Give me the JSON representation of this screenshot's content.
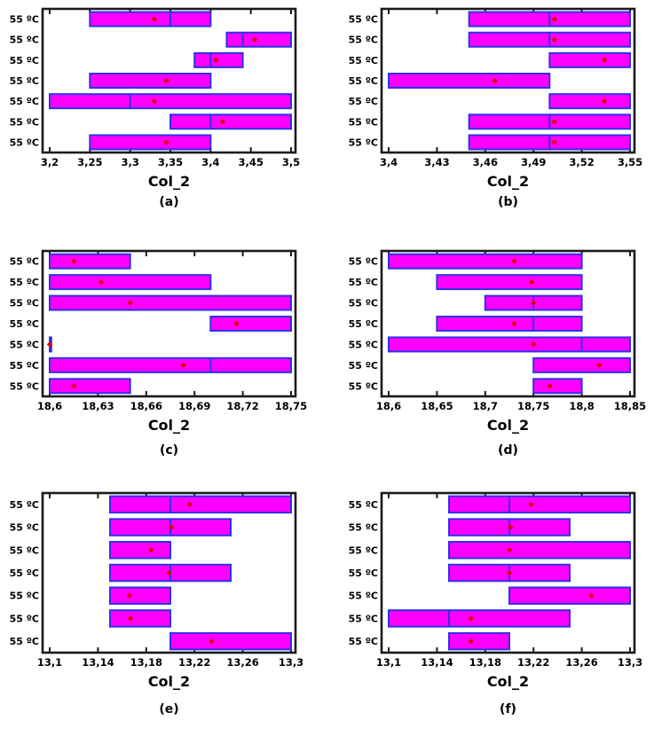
{
  "page": {
    "background": "#ffffff"
  },
  "colors": {
    "box_fill": "#ff00ff",
    "box_border": "#3030e8",
    "median_line": "#3030e8",
    "mean_marker": "#e00000",
    "frame": "#1b1b1b",
    "text": "#000000"
  },
  "x_axis_title": "Col_2",
  "y_axis_label": "55 ºC",
  "chart_data": [
    {
      "type": "boxplot-horizontal",
      "caption": "(a)",
      "xlabel": "Col_2",
      "xlim": [
        3.2,
        3.5
      ],
      "x_tick_values": [
        3.2,
        3.25,
        3.3,
        3.35,
        3.4,
        3.45,
        3.5
      ],
      "x_tick_labels": [
        "3,2",
        "3,25",
        "3,3",
        "3,35",
        "3,4",
        "3,45",
        "3,5"
      ],
      "y_labels": [
        "55 ºC",
        "55 ºC",
        "55 ºC",
        "55 ºC",
        "55 ºC",
        "55 ºC",
        "55 ºC"
      ],
      "boxes": [
        {
          "min": 3.25,
          "max": 3.4,
          "median": 3.35,
          "mean": 3.33
        },
        {
          "min": 3.42,
          "max": 3.5,
          "median": 3.44,
          "mean": 3.455
        },
        {
          "min": 3.38,
          "max": 3.44,
          "median": 3.4,
          "mean": 3.407
        },
        {
          "min": 3.25,
          "max": 3.4,
          "median": null,
          "mean": 3.345
        },
        {
          "min": 3.2,
          "max": 3.5,
          "median": 3.3,
          "mean": 3.33
        },
        {
          "min": 3.35,
          "max": 3.5,
          "median": 3.4,
          "mean": 3.415
        },
        {
          "min": 3.25,
          "max": 3.4,
          "median": null,
          "mean": 3.345
        }
      ]
    },
    {
      "type": "boxplot-horizontal",
      "caption": "(b)",
      "xlabel": "Col_2",
      "xlim": [
        3.4,
        3.55
      ],
      "x_tick_values": [
        3.4,
        3.43,
        3.46,
        3.49,
        3.52,
        3.55
      ],
      "x_tick_labels": [
        "3,4",
        "3,43",
        "3,46",
        "3,49",
        "3,52",
        "3,55"
      ],
      "y_labels": [
        "55 ºC",
        "55 ºC",
        "55 ºC",
        "55 ºC",
        "55 ºC",
        "55 ºC",
        "55 ºC"
      ],
      "boxes": [
        {
          "min": 3.45,
          "max": 3.55,
          "median": 3.5,
          "mean": 3.503
        },
        {
          "min": 3.45,
          "max": 3.55,
          "median": 3.5,
          "mean": 3.503
        },
        {
          "min": 3.5,
          "max": 3.55,
          "median": null,
          "mean": 3.534
        },
        {
          "min": 3.4,
          "max": 3.5,
          "median": null,
          "mean": 3.466
        },
        {
          "min": 3.5,
          "max": 3.55,
          "median": null,
          "mean": 3.534
        },
        {
          "min": 3.45,
          "max": 3.55,
          "median": 3.5,
          "mean": 3.503
        },
        {
          "min": 3.45,
          "max": 3.55,
          "median": 3.5,
          "mean": 3.503
        }
      ]
    },
    {
      "type": "boxplot-horizontal",
      "caption": "(c)",
      "xlabel": "Col_2",
      "xlim": [
        18.6,
        18.75
      ],
      "x_tick_values": [
        18.6,
        18.63,
        18.66,
        18.69,
        18.72,
        18.75
      ],
      "x_tick_labels": [
        "18,6",
        "18,63",
        "18,66",
        "18,69",
        "18,72",
        "18,75"
      ],
      "y_labels": [
        "55 ºC",
        "55 ºC",
        "55 ºC",
        "55 ºC",
        "55 ºC",
        "55 ºC",
        "55 ºC"
      ],
      "boxes": [
        {
          "min": 18.6,
          "max": 18.65,
          "median": null,
          "mean": 18.615
        },
        {
          "min": 18.6,
          "max": 18.7,
          "median": null,
          "mean": 18.632
        },
        {
          "min": 18.6,
          "max": 18.75,
          "median": null,
          "mean": 18.65
        },
        {
          "min": 18.7,
          "max": 18.75,
          "median": null,
          "mean": 18.716
        },
        {
          "min": 18.6,
          "max": 18.601,
          "median": null,
          "mean": 18.6
        },
        {
          "min": 18.6,
          "max": 18.75,
          "median": 18.7,
          "mean": 18.683
        },
        {
          "min": 18.6,
          "max": 18.65,
          "median": null,
          "mean": 18.615
        }
      ]
    },
    {
      "type": "boxplot-horizontal",
      "caption": "(d)",
      "xlabel": "Col_2",
      "xlim": [
        18.6,
        18.85
      ],
      "x_tick_values": [
        18.6,
        18.65,
        18.7,
        18.75,
        18.8,
        18.85
      ],
      "x_tick_labels": [
        "18,6",
        "18,65",
        "18,7",
        "18,75",
        "18,8",
        "18,85"
      ],
      "y_labels": [
        "55 ºC",
        "55 ºC",
        "55 ºC",
        "55 ºC",
        "55 ºC",
        "55 ºC",
        "55 ºC"
      ],
      "boxes": [
        {
          "min": 18.6,
          "max": 18.8,
          "median": null,
          "mean": 18.73
        },
        {
          "min": 18.65,
          "max": 18.8,
          "median": null,
          "mean": 18.748
        },
        {
          "min": 18.7,
          "max": 18.8,
          "median": 18.75,
          "mean": 18.75
        },
        {
          "min": 18.65,
          "max": 18.8,
          "median": 18.75,
          "mean": 18.73
        },
        {
          "min": 18.6,
          "max": 18.85,
          "median": 18.8,
          "mean": 18.75
        },
        {
          "min": 18.75,
          "max": 18.85,
          "median": null,
          "mean": 18.818
        },
        {
          "min": 18.75,
          "max": 18.8,
          "median": null,
          "mean": 18.767
        }
      ]
    },
    {
      "type": "boxplot-horizontal",
      "caption": "(e)",
      "xlabel": "Col_2",
      "xlim": [
        13.1,
        13.3
      ],
      "x_tick_values": [
        13.1,
        13.14,
        13.18,
        13.22,
        13.26,
        13.3
      ],
      "x_tick_labels": [
        "13,1",
        "13,14",
        "13,18",
        "13,22",
        "13,26",
        "13,3"
      ],
      "y_labels": [
        "55 ºC",
        "55 ºC",
        "55 ºC",
        "55 ºC",
        "55 ºC",
        "55 ºC",
        "55 ºC"
      ],
      "boxes": [
        {
          "min": 13.15,
          "max": 13.3,
          "median": 13.2,
          "mean": 13.216
        },
        {
          "min": 13.15,
          "max": 13.25,
          "median": 13.2,
          "mean": 13.201
        },
        {
          "min": 13.15,
          "max": 13.2,
          "median": null,
          "mean": 13.184
        },
        {
          "min": 13.15,
          "max": 13.25,
          "median": 13.2,
          "mean": 13.199
        },
        {
          "min": 13.15,
          "max": 13.2,
          "median": null,
          "mean": 13.166
        },
        {
          "min": 13.15,
          "max": 13.2,
          "median": null,
          "mean": 13.167
        },
        {
          "min": 13.2,
          "max": 13.3,
          "median": null,
          "mean": 13.234
        }
      ]
    },
    {
      "type": "boxplot-horizontal",
      "caption": "(f)",
      "xlabel": "Col_2",
      "xlim": [
        13.1,
        13.3
      ],
      "x_tick_values": [
        13.1,
        13.14,
        13.18,
        13.22,
        13.26,
        13.3
      ],
      "x_tick_labels": [
        "13,1",
        "13,14",
        "13,18",
        "13,22",
        "13,26",
        "13,3"
      ],
      "y_labels": [
        "55 ºC",
        "55 ºC",
        "55 ºC",
        "55 ºC",
        "55 ºC",
        "55 ºC",
        "55 ºC"
      ],
      "boxes": [
        {
          "min": 13.15,
          "max": 13.3,
          "median": 13.2,
          "mean": 13.218
        },
        {
          "min": 13.15,
          "max": 13.25,
          "median": 13.2,
          "mean": 13.201
        },
        {
          "min": 13.15,
          "max": 13.3,
          "median": null,
          "mean": 13.2
        },
        {
          "min": 13.15,
          "max": 13.25,
          "median": 13.2,
          "mean": 13.2
        },
        {
          "min": 13.2,
          "max": 13.3,
          "median": null,
          "mean": 13.268
        },
        {
          "min": 13.1,
          "max": 13.25,
          "median": 13.15,
          "mean": 13.168
        },
        {
          "min": 13.15,
          "max": 13.2,
          "median": null,
          "mean": 13.168
        }
      ]
    }
  ]
}
